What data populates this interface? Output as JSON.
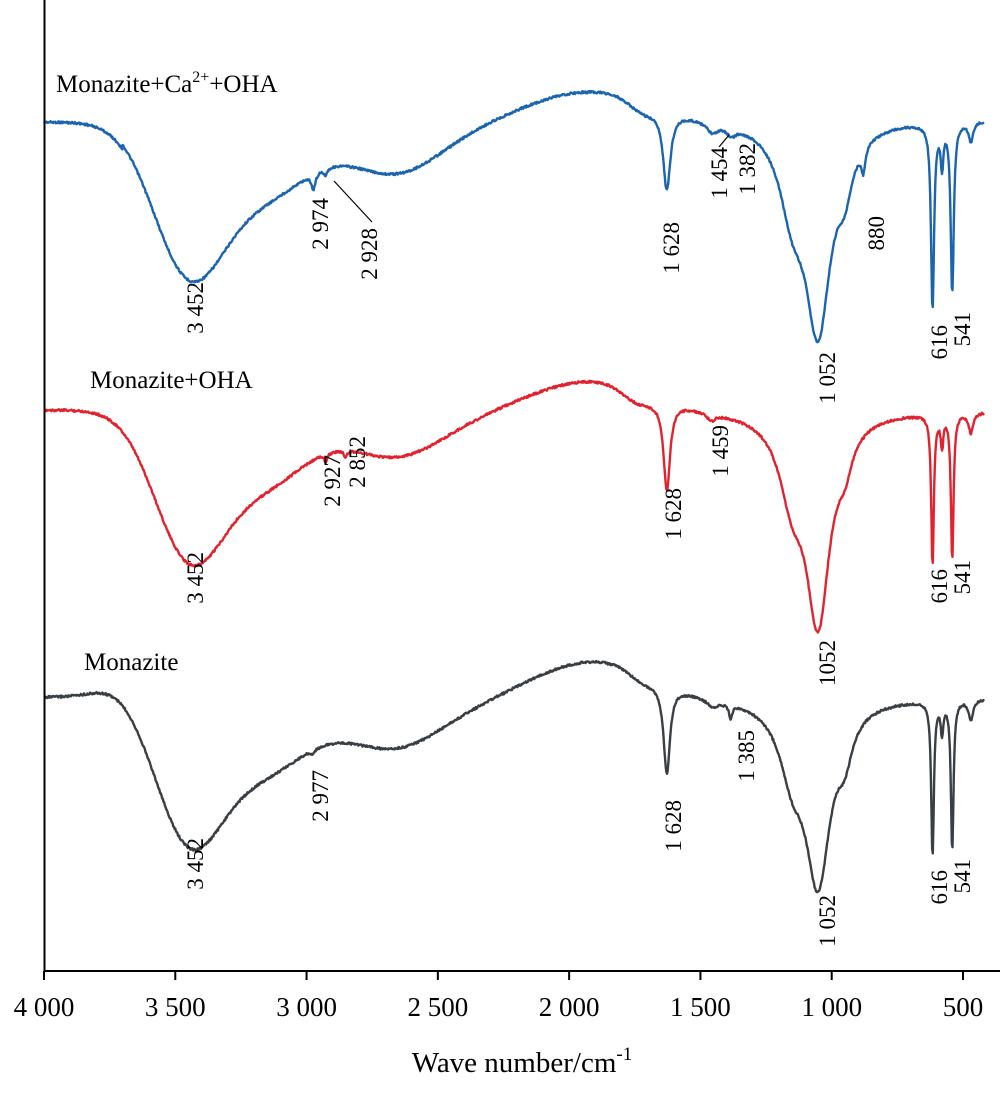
{
  "chart_data": {
    "type": "line",
    "xlabel": "Wave number/cm",
    "xlabel_sup": "-1",
    "xlim": [
      4000,
      420
    ],
    "x_reversed": true,
    "ylabel": "",
    "y_axis_ticks": false,
    "grid": false,
    "x_ticks": [
      {
        "value": 4000,
        "label": "4 000"
      },
      {
        "value": 3500,
        "label": "3 500"
      },
      {
        "value": 3000,
        "label": "3 000"
      },
      {
        "value": 2500,
        "label": "2 500"
      },
      {
        "value": 2000,
        "label": "2 000"
      },
      {
        "value": 1500,
        "label": "1 500"
      },
      {
        "value": 1000,
        "label": "1 000"
      },
      {
        "value": 500,
        "label": "500"
      }
    ],
    "series": [
      {
        "key": "ca_oha",
        "label_main": "Monazite+Ca",
        "label_sup": "2+",
        "label_tail": "+OHA",
        "color": "#1b64ae",
        "peaks": [
          {
            "x": 3452,
            "label": "3 452"
          },
          {
            "x": 2974,
            "label": "2 974"
          },
          {
            "x": 2928,
            "label": "2 928"
          },
          {
            "x": 1628,
            "label": "1 628"
          },
          {
            "x": 1454,
            "label": "1 454"
          },
          {
            "x": 1382,
            "label": "1 382"
          },
          {
            "x": 1052,
            "label": "1 052"
          },
          {
            "x": 880,
            "label": "880"
          },
          {
            "x": 616,
            "label": "616"
          },
          {
            "x": 541,
            "label": "541"
          }
        ]
      },
      {
        "key": "oha",
        "label_main": "Monazite+OHA",
        "color": "#e0232f",
        "peaks": [
          {
            "x": 3452,
            "label": "3 452"
          },
          {
            "x": 2927,
            "label": "2 927"
          },
          {
            "x": 2852,
            "label": "2 852"
          },
          {
            "x": 1628,
            "label": "1 628"
          },
          {
            "x": 1459,
            "label": "1 459"
          },
          {
            "x": 1052,
            "label": "1052"
          },
          {
            "x": 616,
            "label": "616"
          },
          {
            "x": 541,
            "label": "541"
          }
        ]
      },
      {
        "key": "monazite",
        "label_main": "Monazite",
        "color": "#3a3f44",
        "peaks": [
          {
            "x": 3452,
            "label": "3 452"
          },
          {
            "x": 2977,
            "label": "2 977"
          },
          {
            "x": 1628,
            "label": "1 628"
          },
          {
            "x": 1385,
            "label": "1 385"
          },
          {
            "x": 1052,
            "label": "1 052"
          },
          {
            "x": 616,
            "label": "616"
          },
          {
            "x": 541,
            "label": "541"
          }
        ]
      }
    ]
  }
}
